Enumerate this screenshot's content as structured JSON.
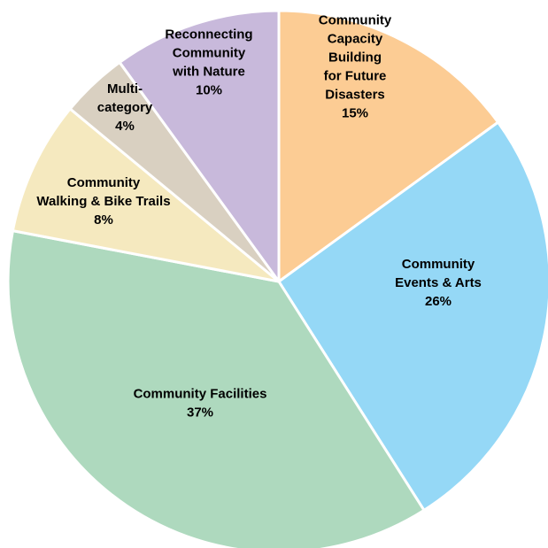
{
  "chart_data": {
    "type": "pie",
    "title": "",
    "slices": [
      {
        "lines": [
          "Community",
          "Capacity",
          "Building",
          "for Future",
          "Disasters",
          "15%"
        ],
        "value": 15,
        "color": "#fccc94"
      },
      {
        "lines": [
          "Community",
          "Events & Arts",
          "26%"
        ],
        "value": 26,
        "color": "#95d8f6"
      },
      {
        "lines": [
          "Community Facilities",
          "37%"
        ],
        "value": 37,
        "color": "#aed9be"
      },
      {
        "lines": [
          "Community",
          "Walking & Bike Trails",
          "8%"
        ],
        "value": 8,
        "color": "#f5e9bf"
      },
      {
        "lines": [
          "Multi-",
          "category",
          "4%"
        ],
        "value": 4,
        "color": "#d9d0c1"
      },
      {
        "lines": [
          "Reconnecting",
          "Community",
          "with Nature",
          "10%"
        ],
        "value": 10,
        "color": "#c8b9db"
      }
    ]
  }
}
